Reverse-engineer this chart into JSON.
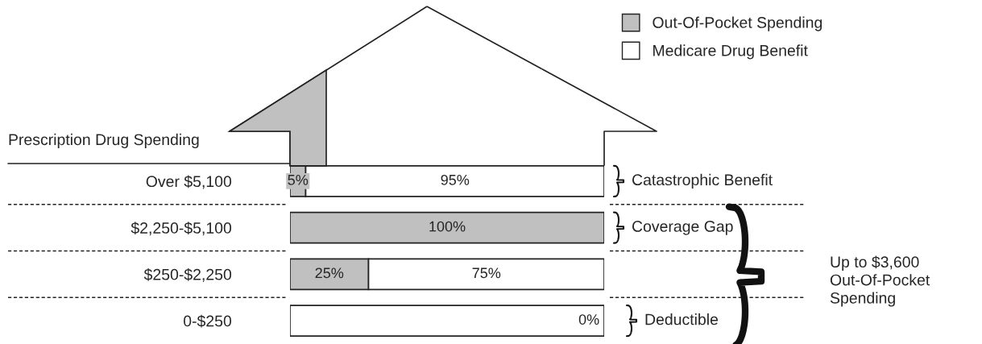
{
  "chart_data": {
    "type": "bar",
    "orientation": "horizontal",
    "stacked": true,
    "categories": [
      "Over $5,100",
      "$2,250-$5,100",
      "$250-$2,250",
      "0-$250"
    ],
    "ylabel": "Prescription Drug Spending",
    "xlim": [
      0,
      100
    ],
    "tick_labels": "y",
    "legend": "top right",
    "series": [
      {
        "name": "Out-Of-Pocket Spending",
        "colors": [
          "#c0c0c0",
          "#c0c0c0",
          "#c0c0c0",
          "#ffffff"
        ],
        "values": [
          5,
          100,
          25,
          100
        ],
        "value_labels": [
          "5%",
          "100%",
          "25%",
          null
        ]
      },
      {
        "name": "Medicare Drug Benefit",
        "color": "#ffffff",
        "values": [
          95,
          0,
          75,
          0
        ],
        "value_labels": [
          "95%",
          null,
          "75%",
          "0%"
        ]
      }
    ],
    "annotations": [
      "Catastrophic Benefit",
      "Coverage Gap",
      "Deductible",
      "Up to $3,600\nOut-Of-Pocket\nSpending"
    ]
  }
}
